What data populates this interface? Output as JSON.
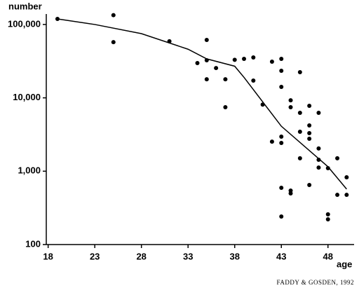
{
  "chart_data": {
    "type": "scatter",
    "ylabel": "number",
    "xlabel": "age",
    "source": "FADDY & GOSDEN, 1992",
    "log_y": true,
    "xlim": [
      17.8,
      50.8
    ],
    "xticks": [
      18,
      23,
      28,
      33,
      38,
      43,
      48
    ],
    "ylim": [
      100,
      150000
    ],
    "yticks": [
      100,
      {
        "value": 1000,
        "label": "1,000"
      },
      {
        "value": 10000,
        "label": "10,000"
      },
      {
        "value": 100000,
        "label": "100,000"
      }
    ],
    "series": [
      {
        "kind": "points",
        "color": "#000000",
        "x": [
          19,
          25,
          25,
          31,
          34,
          35,
          35,
          35,
          36,
          37,
          37,
          38,
          39,
          40,
          40,
          41,
          42,
          42,
          43,
          43,
          43,
          43,
          43,
          43,
          43,
          44,
          44,
          44,
          44,
          45,
          45,
          45,
          45,
          46,
          46,
          46,
          46,
          46,
          47,
          47,
          47,
          47,
          48,
          48,
          48,
          49,
          49,
          50,
          50
        ],
        "values": [
          119000,
          134000,
          57500,
          59000,
          29800,
          61600,
          32500,
          17900,
          25500,
          17900,
          7450,
          33000,
          34000,
          35500,
          17200,
          8100,
          31100,
          2530,
          34000,
          23400,
          14100,
          2960,
          2430,
          594,
          241,
          9270,
          7450,
          544,
          498,
          22400,
          6250,
          3450,
          1500,
          7780,
          4210,
          3300,
          2770,
          649,
          6250,
          2040,
          1430,
          1120,
          1100,
          258,
          221,
          1500,
          476,
          826,
          476
        ]
      },
      {
        "kind": "line",
        "color": "#000000",
        "x": [
          19,
          23,
          28,
          33,
          35,
          38,
          39,
          43,
          48,
          50
        ],
        "values": [
          119000,
          100000,
          75000,
          46000,
          34000,
          27000,
          19000,
          4100,
          1150,
          570
        ]
      }
    ]
  }
}
